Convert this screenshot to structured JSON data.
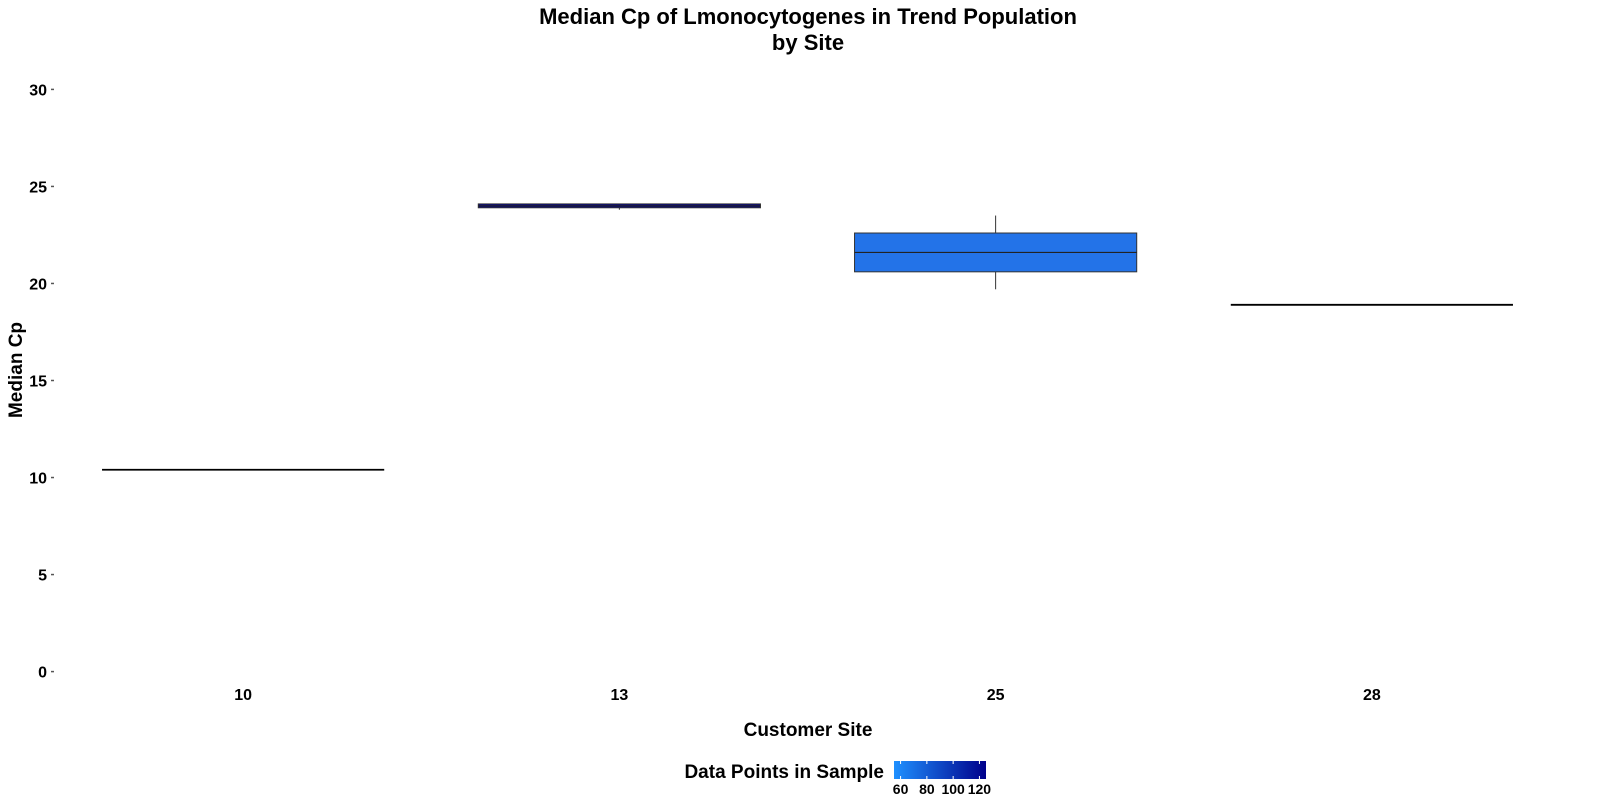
{
  "chart_data": {
    "type": "box",
    "title": "Median Cp of Lmonocytogenes in Trend Population",
    "subtitle": "by Site",
    "xlabel": "Customer Site",
    "ylabel": "Median Cp",
    "ylim": [
      -1,
      31
    ],
    "yticks": [
      0,
      5,
      10,
      15,
      20,
      25,
      30
    ],
    "categories": [
      "10",
      "13",
      "25",
      "28"
    ],
    "boxes": [
      {
        "category": "10",
        "min": 10.4,
        "q1": 10.4,
        "median": 10.4,
        "q3": 10.4,
        "max": 10.4,
        "data_points": 55,
        "fill": "#1e90ff"
      },
      {
        "category": "13",
        "min": 23.8,
        "q1": 23.9,
        "median": 24.0,
        "q3": 24.1,
        "max": 24.1,
        "data_points": 120,
        "fill": "#00008b"
      },
      {
        "category": "25",
        "min": 19.7,
        "q1": 20.6,
        "median": 21.6,
        "q3": 22.6,
        "max": 23.5,
        "data_points": 65,
        "fill": "#2373e8"
      },
      {
        "category": "28",
        "min": 18.9,
        "q1": 18.9,
        "median": 18.9,
        "q3": 18.9,
        "max": 18.9,
        "data_points": 55,
        "fill": "#1e90ff"
      }
    ],
    "legend": {
      "title": "Data Points in Sample",
      "position": "bottom",
      "colors": [
        "#1e90ff",
        "#00008b"
      ],
      "range": [
        55,
        125
      ],
      "ticks": [
        "60",
        "80",
        "100",
        "120"
      ]
    },
    "grid": false
  }
}
